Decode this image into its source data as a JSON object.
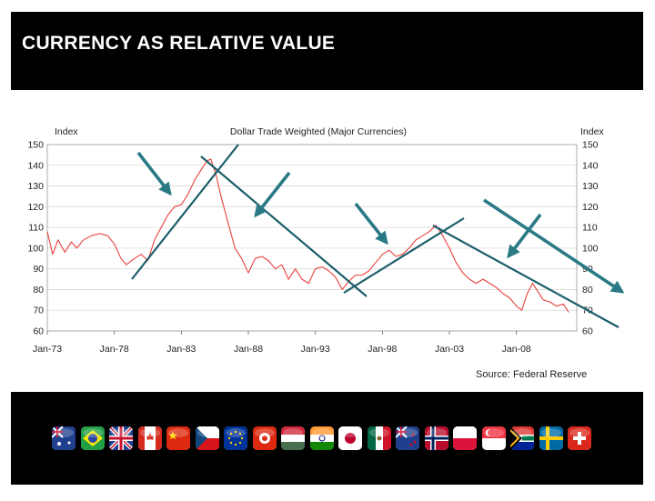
{
  "slide": {
    "title": "CURRENCY AS RELATIVE VALUE",
    "source": "Source: Federal Reserve"
  },
  "colors": {
    "series": "#e8413c",
    "trend": "#1b5e6b",
    "arrow": "#2a7a86",
    "grid": "#d9d9d9"
  },
  "chart_data": {
    "type": "line",
    "title": "Dollar Trade Weighted (Major Currencies)",
    "ylabel_left": "Index",
    "ylabel_right": "Index",
    "ylim": [
      60,
      150
    ],
    "yticks": [
      60,
      70,
      80,
      90,
      100,
      110,
      120,
      130,
      140,
      150
    ],
    "xlim": [
      1973.0,
      2012.5
    ],
    "xticks": [
      {
        "year": 1973,
        "label": "Jan-73"
      },
      {
        "year": 1978,
        "label": "Jan-78"
      },
      {
        "year": 1983,
        "label": "Jan-83"
      },
      {
        "year": 1988,
        "label": "Jan-88"
      },
      {
        "year": 1993,
        "label": "Jan-93"
      },
      {
        "year": 1998,
        "label": "Jan-98"
      },
      {
        "year": 2003,
        "label": "Jan-03"
      },
      {
        "year": 2008,
        "label": "Jan-08"
      }
    ],
    "series": [
      {
        "name": "Dollar Trade Weighted (Major Currencies)",
        "x": [
          1973.0,
          1973.4,
          1973.8,
          1974.3,
          1974.8,
          1975.2,
          1975.7,
          1976.3,
          1976.9,
          1977.5,
          1978.0,
          1978.5,
          1978.9,
          1979.5,
          1980.0,
          1980.5,
          1981.0,
          1981.5,
          1982.0,
          1982.5,
          1983.0,
          1983.5,
          1984.0,
          1984.5,
          1984.9,
          1985.2,
          1985.6,
          1986.0,
          1986.5,
          1987.0,
          1987.5,
          1988.0,
          1988.5,
          1989.0,
          1989.5,
          1990.0,
          1990.5,
          1991.0,
          1991.5,
          1992.0,
          1992.5,
          1993.0,
          1993.5,
          1994.0,
          1994.5,
          1995.0,
          1995.5,
          1996.0,
          1996.5,
          1997.0,
          1997.5,
          1998.0,
          1998.5,
          1999.0,
          1999.5,
          2000.0,
          2000.5,
          2001.0,
          2001.5,
          2002.0,
          2002.5,
          2003.0,
          2003.5,
          2004.0,
          2004.5,
          2005.0,
          2005.5,
          2006.0,
          2006.5,
          2007.0,
          2007.5,
          2008.0,
          2008.4,
          2008.8,
          2009.2,
          2009.6,
          2010.0,
          2010.5,
          2011.0,
          2011.5,
          2011.9
        ],
        "values": [
          108,
          97,
          104,
          98,
          103,
          100,
          104,
          106,
          107,
          106,
          102,
          95,
          92,
          95,
          97,
          94,
          104,
          110,
          116,
          120,
          121,
          126,
          133,
          138,
          142,
          143,
          135,
          124,
          112,
          100,
          95,
          88,
          95,
          96,
          94,
          90,
          92,
          85,
          90,
          85,
          83,
          90,
          91,
          89,
          86,
          80,
          84,
          87,
          87,
          89,
          93,
          97,
          99,
          96,
          97,
          100,
          104,
          106,
          108,
          111,
          106,
          100,
          93,
          88,
          85,
          83,
          85,
          83,
          81,
          78,
          76,
          72,
          70,
          78,
          83,
          79,
          75,
          74,
          72,
          73,
          69
        ]
      }
    ],
    "annotations": [
      "trend lines",
      "direction arrows"
    ]
  },
  "flags": [
    {
      "country": "Australia",
      "icon": "australia-flag-icon"
    },
    {
      "country": "Brazil",
      "icon": "brazil-flag-icon"
    },
    {
      "country": "United Kingdom",
      "icon": "uk-flag-icon"
    },
    {
      "country": "Canada",
      "icon": "canada-flag-icon"
    },
    {
      "country": "China",
      "icon": "china-flag-icon"
    },
    {
      "country": "Czech Republic",
      "icon": "czech-flag-icon"
    },
    {
      "country": "European Union",
      "icon": "eu-flag-icon"
    },
    {
      "country": "Hong Kong",
      "icon": "hongkong-flag-icon"
    },
    {
      "country": "Hungary",
      "icon": "hungary-flag-icon"
    },
    {
      "country": "India",
      "icon": "india-flag-icon"
    },
    {
      "country": "Japan",
      "icon": "japan-flag-icon"
    },
    {
      "country": "Mexico",
      "icon": "mexico-flag-icon"
    },
    {
      "country": "New Zealand",
      "icon": "newzealand-flag-icon"
    },
    {
      "country": "Norway",
      "icon": "norway-flag-icon"
    },
    {
      "country": "Poland",
      "icon": "poland-flag-icon"
    },
    {
      "country": "Singapore",
      "icon": "singapore-flag-icon"
    },
    {
      "country": "South Africa",
      "icon": "southafrica-flag-icon"
    },
    {
      "country": "Sweden",
      "icon": "sweden-flag-icon"
    },
    {
      "country": "Switzerland",
      "icon": "switzerland-flag-icon"
    }
  ]
}
